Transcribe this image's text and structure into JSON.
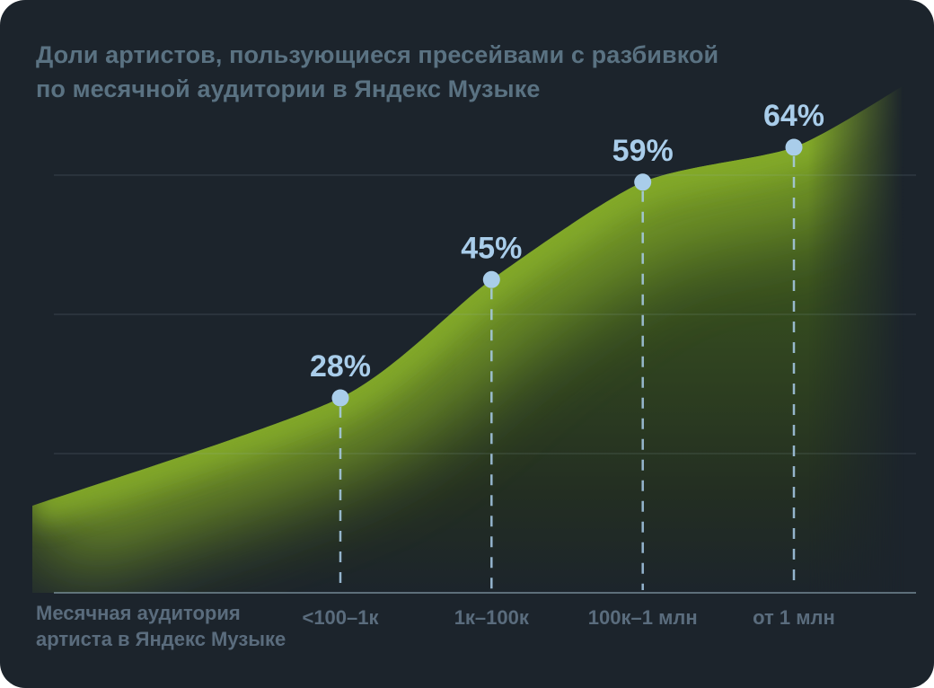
{
  "page": {
    "background": "#ffffff"
  },
  "card": {
    "background": "#1c242c",
    "title_lines": [
      "Доли артистов, пользующиеся пресейвами с разбивкой",
      "по месячной аудитории в Яндекс Музыке"
    ]
  },
  "chart_data": {
    "type": "area",
    "title": "Доли артистов, пользующиеся пресейвами с разбивкой по месячной аудитории в Яндекс Музыке",
    "xlabel": "Месячная аудитория артиста в Яндекс Музыке",
    "xlabel_lines": [
      "Месячная аудитория",
      "артиста в Яндекс Музыке"
    ],
    "categories": [
      "<100–1к",
      "1к–100к",
      "100к–1 млн",
      "от 1 млн"
    ],
    "values": [
      28,
      45,
      59,
      64
    ],
    "point_labels": [
      "28%",
      "45%",
      "59%",
      "64%"
    ],
    "ylim": [
      0,
      80
    ],
    "grid": true,
    "gridline_values": [
      20,
      40,
      60
    ],
    "legend": false,
    "curve_edge_start_value": 12.5,
    "curve_edge_end_value": 73,
    "colors": {
      "accent_blue": "#a9cdea",
      "area_green_bright": "#86ad2c",
      "background": "#1c242c",
      "muted_text": "#5a6c7d",
      "title_text": "#5a7282"
    }
  }
}
